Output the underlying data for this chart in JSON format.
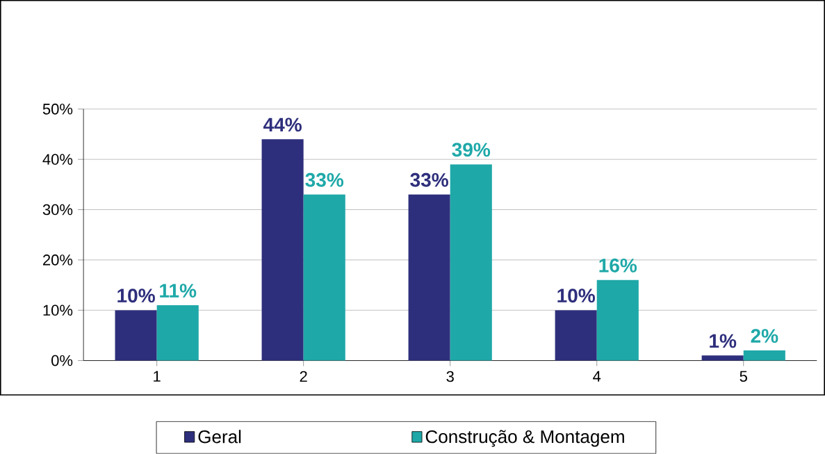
{
  "chart_data": {
    "type": "bar",
    "categories": [
      "1",
      "2",
      "3",
      "4",
      "5"
    ],
    "series": [
      {
        "name": "Geral",
        "color": "#2e2f7c",
        "values": [
          10,
          44,
          33,
          10,
          1
        ],
        "value_labels": [
          "10%",
          "44%",
          "33%",
          "10%",
          "1%"
        ]
      },
      {
        "name": "Construção & Montagem",
        "color": "#1fa8a8",
        "values": [
          11,
          33,
          39,
          16,
          2
        ],
        "value_labels": [
          "11%",
          "33%",
          "39%",
          "16%",
          "2%"
        ]
      }
    ],
    "ylim": [
      0,
      50
    ],
    "yticks": [
      {
        "value": 0,
        "label": "0%"
      },
      {
        "value": 10,
        "label": "10%"
      },
      {
        "value": 20,
        "label": "20%"
      },
      {
        "value": 30,
        "label": "30%"
      },
      {
        "value": 40,
        "label": "40%"
      },
      {
        "value": 50,
        "label": "50%"
      }
    ],
    "grid": "y",
    "legend": "bottom"
  }
}
